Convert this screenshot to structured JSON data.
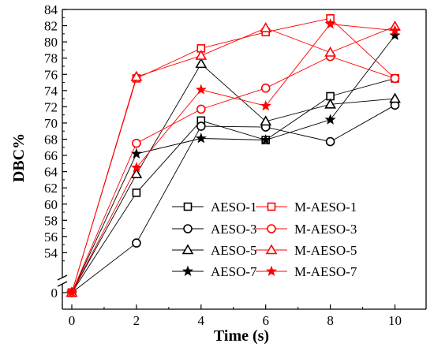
{
  "chart_data": {
    "type": "line",
    "xlabel": "Time (s)",
    "ylabel": "DBC%",
    "xlim": [
      0,
      10.8
    ],
    "ylim_upper": [
      52,
      84
    ],
    "axis_break": "between 0 and 52",
    "x_ticks": [
      "0",
      "2",
      "4",
      "6",
      "8",
      "10"
    ],
    "y_ticks": [
      "0",
      "54",
      "56",
      "58",
      "60",
      "62",
      "64",
      "66",
      "68",
      "70",
      "72",
      "74",
      "76",
      "78",
      "80",
      "82",
      "84"
    ],
    "x": [
      0,
      2,
      4,
      6,
      8,
      10
    ],
    "legend_placement": "bottom-right, two columns",
    "series": [
      {
        "name": "AESO-1",
        "color": "#000000",
        "marker": "square",
        "values": [
          0,
          61.4,
          70.3,
          67.9,
          73.3,
          75.5
        ]
      },
      {
        "name": "AESO-3",
        "color": "#000000",
        "marker": "circle",
        "values": [
          0,
          55.2,
          69.6,
          69.5,
          67.7,
          72.2
        ]
      },
      {
        "name": "AESO-5",
        "color": "#000000",
        "marker": "triangle",
        "values": [
          0,
          63.7,
          77.3,
          70.2,
          72.3,
          73.0
        ]
      },
      {
        "name": "AESO-7",
        "color": "#000000",
        "marker": "star",
        "values": [
          0,
          66.2,
          68.1,
          67.9,
          70.4,
          80.8
        ]
      },
      {
        "name": "M-AESO-1",
        "color": "#ff0000",
        "marker": "square",
        "values": [
          0,
          75.5,
          79.2,
          81.2,
          82.9,
          75.5
        ]
      },
      {
        "name": "M-AESO-3",
        "color": "#ff0000",
        "marker": "circle",
        "values": [
          0,
          67.5,
          71.7,
          74.3,
          78.2,
          75.5
        ]
      },
      {
        "name": "M-AESO-5",
        "color": "#ff0000",
        "marker": "triangle",
        "values": [
          0,
          75.7,
          78.3,
          81.7,
          78.7,
          81.9
        ]
      },
      {
        "name": "M-AESO-7",
        "color": "#ff0000",
        "marker": "star",
        "values": [
          0,
          64.5,
          74.1,
          72.1,
          82.2,
          81.4
        ]
      }
    ]
  }
}
